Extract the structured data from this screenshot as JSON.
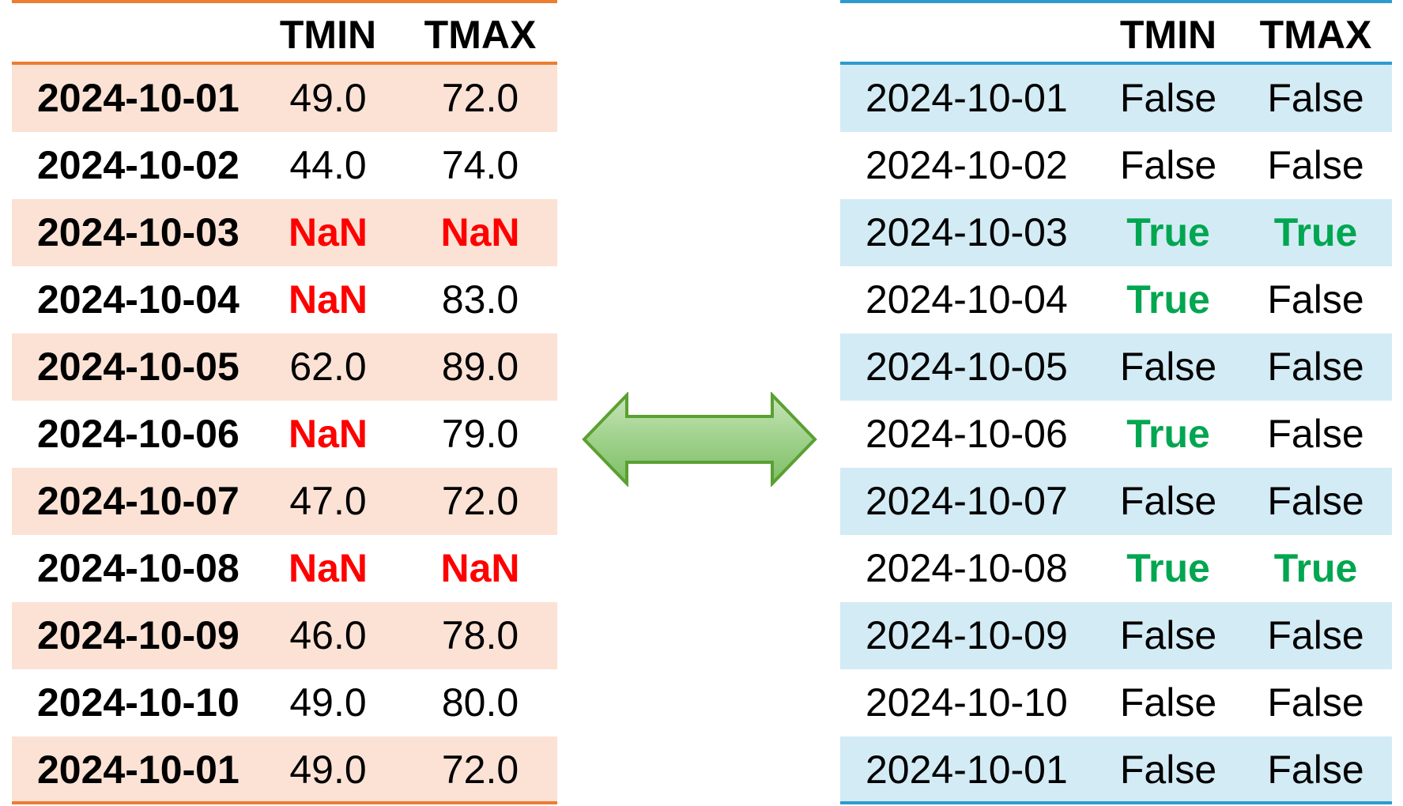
{
  "colors": {
    "left_accent": "#ed7d31",
    "left_stripe": "#fbe2d5",
    "right_accent": "#2e9bd0",
    "right_stripe": "#d3ebf5",
    "missing": "#ff0000",
    "true_value": "#00a650",
    "arrow_fill": "#93cc80",
    "arrow_stroke": "#5aa032"
  },
  "left_table": {
    "headers": [
      "",
      "TMIN",
      "TMAX"
    ],
    "rows": [
      {
        "date": "2024-10-01",
        "tmin": "49.0",
        "tmax": "72.0"
      },
      {
        "date": "2024-10-02",
        "tmin": "44.0",
        "tmax": "74.0"
      },
      {
        "date": "2024-10-03",
        "tmin": "NaN",
        "tmax": "NaN"
      },
      {
        "date": "2024-10-04",
        "tmin": "NaN",
        "tmax": "83.0"
      },
      {
        "date": "2024-10-05",
        "tmin": "62.0",
        "tmax": "89.0"
      },
      {
        "date": "2024-10-06",
        "tmin": "NaN",
        "tmax": "79.0"
      },
      {
        "date": "2024-10-07",
        "tmin": "47.0",
        "tmax": "72.0"
      },
      {
        "date": "2024-10-08",
        "tmin": "NaN",
        "tmax": "NaN"
      },
      {
        "date": "2024-10-09",
        "tmin": "46.0",
        "tmax": "78.0"
      },
      {
        "date": "2024-10-10",
        "tmin": "49.0",
        "tmax": "80.0"
      },
      {
        "date": "2024-10-01",
        "tmin": "49.0",
        "tmax": "72.0"
      }
    ]
  },
  "right_table": {
    "headers": [
      "",
      "TMIN",
      "TMAX"
    ],
    "rows": [
      {
        "date": "2024-10-01",
        "tmin": "False",
        "tmax": "False"
      },
      {
        "date": "2024-10-02",
        "tmin": "False",
        "tmax": "False"
      },
      {
        "date": "2024-10-03",
        "tmin": "True",
        "tmax": "True"
      },
      {
        "date": "2024-10-04",
        "tmin": "True",
        "tmax": "False"
      },
      {
        "date": "2024-10-05",
        "tmin": "False",
        "tmax": "False"
      },
      {
        "date": "2024-10-06",
        "tmin": "True",
        "tmax": "False"
      },
      {
        "date": "2024-10-07",
        "tmin": "False",
        "tmax": "False"
      },
      {
        "date": "2024-10-08",
        "tmin": "True",
        "tmax": "True"
      },
      {
        "date": "2024-10-09",
        "tmin": "False",
        "tmax": "False"
      },
      {
        "date": "2024-10-10",
        "tmin": "False",
        "tmax": "False"
      },
      {
        "date": "2024-10-01",
        "tmin": "False",
        "tmax": "False"
      }
    ]
  },
  "connector": {
    "icon": "double-headed-arrow-icon"
  }
}
